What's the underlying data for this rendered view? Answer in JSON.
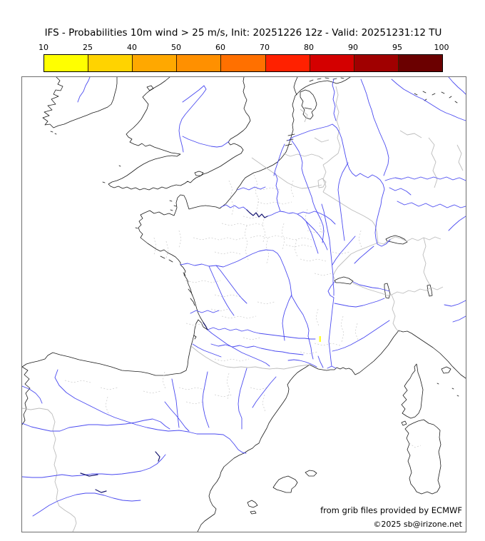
{
  "header": {
    "title": "IFS - Probabilities 10m wind > 25 m/s, Init: 20251226 12z - Valid: 20251231:12 TU"
  },
  "legend": {
    "tick_labels": [
      "10",
      "25",
      "40",
      "50",
      "60",
      "70",
      "80",
      "90",
      "95",
      "100"
    ],
    "unit": "%",
    "segment_colors": [
      "#ffff00",
      "#ffd300",
      "#ffa800",
      "#ff9000",
      "#ff7000",
      "#ff2100",
      "#d40000",
      "#a00000",
      "#6b0000"
    ]
  },
  "map": {
    "frame_color": "#6e6e6e",
    "coast_color": "#1c1c1c",
    "river_color": "#4a4af0",
    "river_dark_color": "#191970",
    "country_border_color": "#bcbcbc",
    "department_border_color": "#d0d0d0",
    "highlight": {
      "color": "#ffff2e",
      "meaning": "small area of 10-25% probability in south-central France"
    },
    "attribution_line1": "from grib files provided by ECMWF",
    "attribution_line2": "©2025 sb@irizone.net"
  }
}
